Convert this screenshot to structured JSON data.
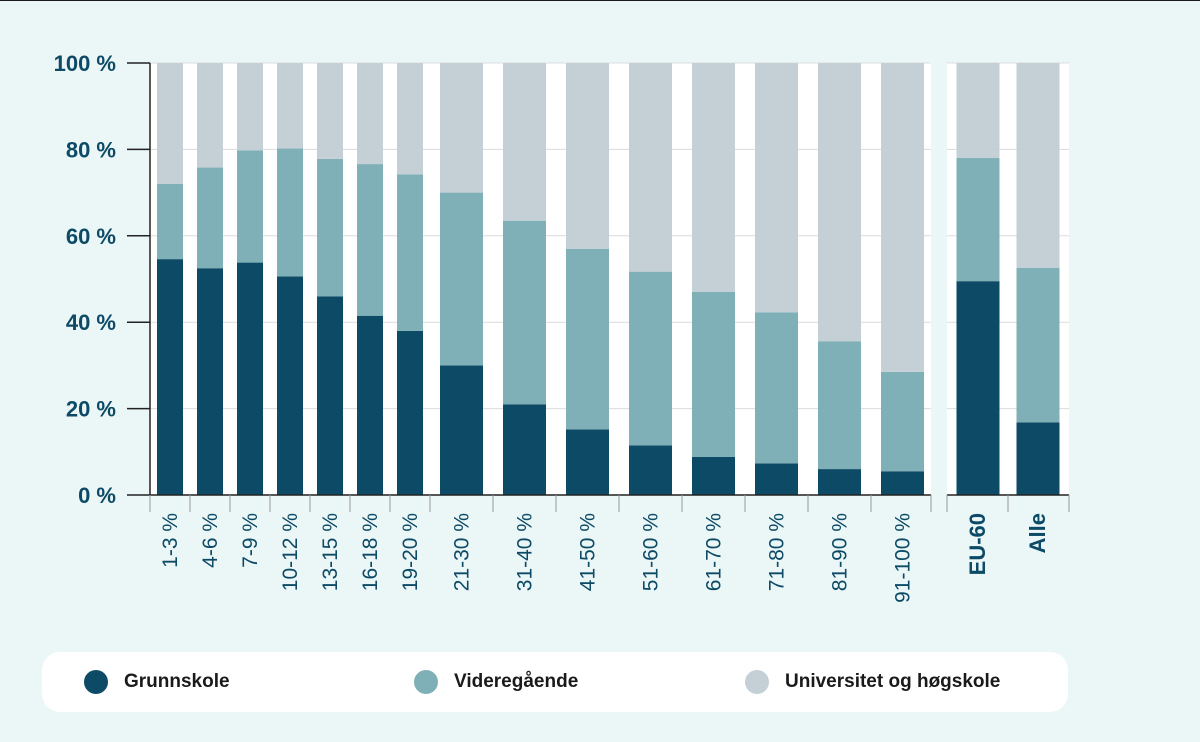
{
  "chart_data": {
    "type": "bar",
    "stacked": true,
    "categories": [
      "1-3 %",
      "4-6 %",
      "7-9 %",
      "10-12 %",
      "13-15 %",
      "16-18 %",
      "19-20 %",
      "21-30 %",
      "31-40 %",
      "41-50 %",
      "51-60 %",
      "61-70 %",
      "71-80 %",
      "81-90 %",
      "91-100 %"
    ],
    "extra_categories": [
      "EU-60",
      "Alle"
    ],
    "series": [
      {
        "name": "Grunnskole",
        "color": "#0d4a66",
        "values": [
          54.6,
          52.5,
          53.8,
          50.6,
          46.0,
          41.5,
          38.0,
          30.0,
          21.0,
          15.2,
          11.5,
          8.8,
          7.3,
          6.0,
          5.5
        ],
        "extra_values": [
          49.5,
          16.8
        ]
      },
      {
        "name": "Videregående",
        "color": "#7fb0b7",
        "values": [
          17.4,
          23.3,
          26.0,
          29.6,
          31.8,
          35.1,
          36.2,
          40.0,
          42.5,
          41.8,
          40.2,
          38.2,
          35.0,
          29.6,
          23.0
        ],
        "extra_values": [
          28.5,
          35.8
        ]
      },
      {
        "name": "Universitet og høgskole",
        "color": "#c4cfd6",
        "values": [
          28.0,
          24.2,
          20.2,
          19.8,
          22.2,
          23.4,
          25.8,
          30.0,
          36.5,
          43.0,
          48.3,
          53.0,
          57.7,
          64.4,
          71.5
        ],
        "extra_values": [
          22.0,
          47.4
        ]
      }
    ],
    "y_ticks": [
      "0 %",
      "20 %",
      "40 %",
      "60 %",
      "80 %",
      "100 %"
    ],
    "ylim": [
      0,
      100
    ],
    "grid": true,
    "legend_position": "bottom"
  }
}
